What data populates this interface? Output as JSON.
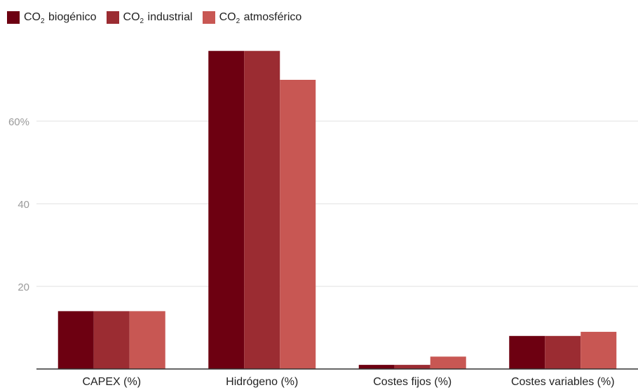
{
  "chart_data": {
    "type": "bar",
    "title": "",
    "xlabel": "",
    "ylabel": "",
    "categories": [
      "CAPEX (%)",
      "Hidrógeno (%)",
      "Costes fijos (%)",
      "Costes variables (%)"
    ],
    "series": [
      {
        "name": "CO₂ biogénico",
        "legend_base": "CO",
        "legend_sub": "2",
        "legend_rest": " biogénico",
        "color": "#6d0011",
        "values": [
          14,
          77,
          1,
          8
        ]
      },
      {
        "name": "CO₂ industrial",
        "legend_base": "CO",
        "legend_sub": "2",
        "legend_rest": " industrial",
        "color": "#9b2c32",
        "values": [
          14,
          77,
          1,
          8
        ]
      },
      {
        "name": "CO₂ atmosférico",
        "legend_base": "CO",
        "legend_sub": "2",
        "legend_rest": " atmosférico",
        "color": "#c85753",
        "values": [
          14,
          70,
          3,
          9
        ]
      }
    ],
    "yticks": [
      {
        "value": 20,
        "label": "20"
      },
      {
        "value": 40,
        "label": "40"
      },
      {
        "value": 60,
        "label": "60%"
      }
    ],
    "ylim": [
      0,
      80
    ],
    "grid": true,
    "legend_position": "top-left"
  }
}
